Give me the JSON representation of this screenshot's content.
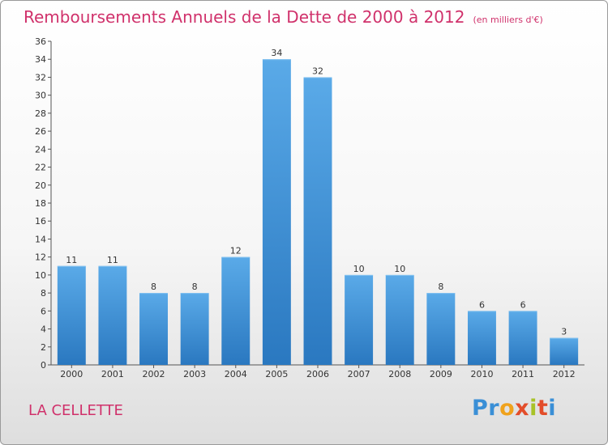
{
  "chart_data": {
    "type": "bar",
    "title": "Remboursements Annuels de la Dette de 2000 à 2012",
    "unit": "(en milliers d'€)",
    "categories": [
      "2000",
      "2001",
      "2002",
      "2003",
      "2004",
      "2005",
      "2006",
      "2007",
      "2008",
      "2009",
      "2010",
      "2011",
      "2012"
    ],
    "values": [
      11,
      11,
      8,
      8,
      12,
      34,
      32,
      10,
      10,
      8,
      6,
      6,
      3
    ],
    "ylim": [
      0,
      36
    ],
    "yticks": [
      0,
      2,
      4,
      6,
      8,
      10,
      12,
      14,
      16,
      18,
      20,
      22,
      24,
      26,
      28,
      30,
      32,
      34,
      36
    ],
    "grid": false,
    "bar_color": "#3d8fd9"
  },
  "footer": {
    "commune": "LA CELLETTE",
    "brand": [
      "Pr",
      "o",
      "x",
      "i",
      "t",
      "i"
    ]
  }
}
